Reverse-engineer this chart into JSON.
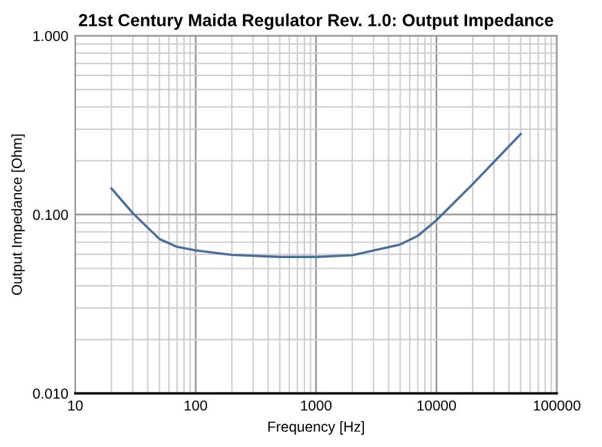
{
  "chart_data": {
    "type": "line",
    "title": "21st Century Maida Regulator Rev. 1.0: Output Impedance",
    "xlabel": "Frequency [Hz]",
    "ylabel": "Output Impedance [Ohm]",
    "log": "xy",
    "series": [
      {
        "color": "#4a6e9a",
        "x": [
          20,
          30,
          50,
          70,
          100,
          200,
          500,
          1000,
          2000,
          5000,
          7000,
          10000,
          20000,
          50000
        ],
        "values": [
          0.14,
          0.102,
          0.073,
          0.066,
          0.063,
          0.0595,
          0.058,
          0.058,
          0.0592,
          0.068,
          0.076,
          0.093,
          0.148,
          0.282
        ]
      }
    ],
    "xlim": [
      10,
      100000
    ],
    "ylim": [
      0.01,
      1
    ],
    "xticks": [
      10,
      100,
      1000,
      10000,
      100000
    ],
    "yticks": [
      {
        "value": 0.01,
        "label": "0.010"
      },
      {
        "value": 0.1,
        "label": "0.100"
      },
      {
        "value": 1,
        "label": "1.000"
      }
    ],
    "grid": true,
    "marker": "none",
    "line_style": "solid"
  }
}
